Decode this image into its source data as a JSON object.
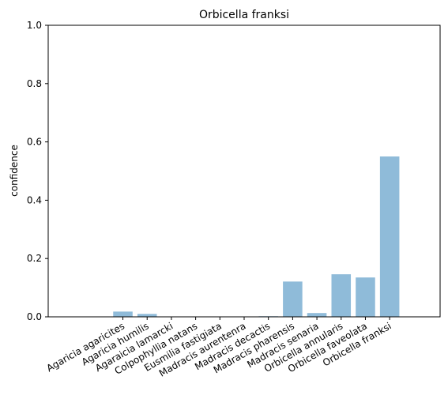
{
  "chart_data": {
    "type": "bar",
    "title": "Orbicella franksi",
    "xlabel": "",
    "ylabel": "confidence",
    "ylim": [
      0,
      1.0
    ],
    "yticks": [
      "0.0",
      "0.2",
      "0.4",
      "0.6",
      "0.8",
      "1.0"
    ],
    "categories": [
      "Agaricia agaricites",
      "Agaricia humilis",
      "Agaraicia lamarcki",
      "Colpophyllia natans",
      "Eusmilia fastigiata",
      "Madracis aurentenra",
      "Madracis decactis",
      "Madracis pharensis",
      "Madracis senaria",
      "Orbicella annularis",
      "Orbicella faveolata",
      "Orbicella franksi"
    ],
    "values": [
      0.018,
      0.01,
      0.0,
      0.0,
      0.0,
      0.0,
      0.002,
      0.121,
      0.013,
      0.146,
      0.135,
      0.55
    ],
    "bar_color": "#8fbbd9",
    "grid": false,
    "legend": "none"
  }
}
